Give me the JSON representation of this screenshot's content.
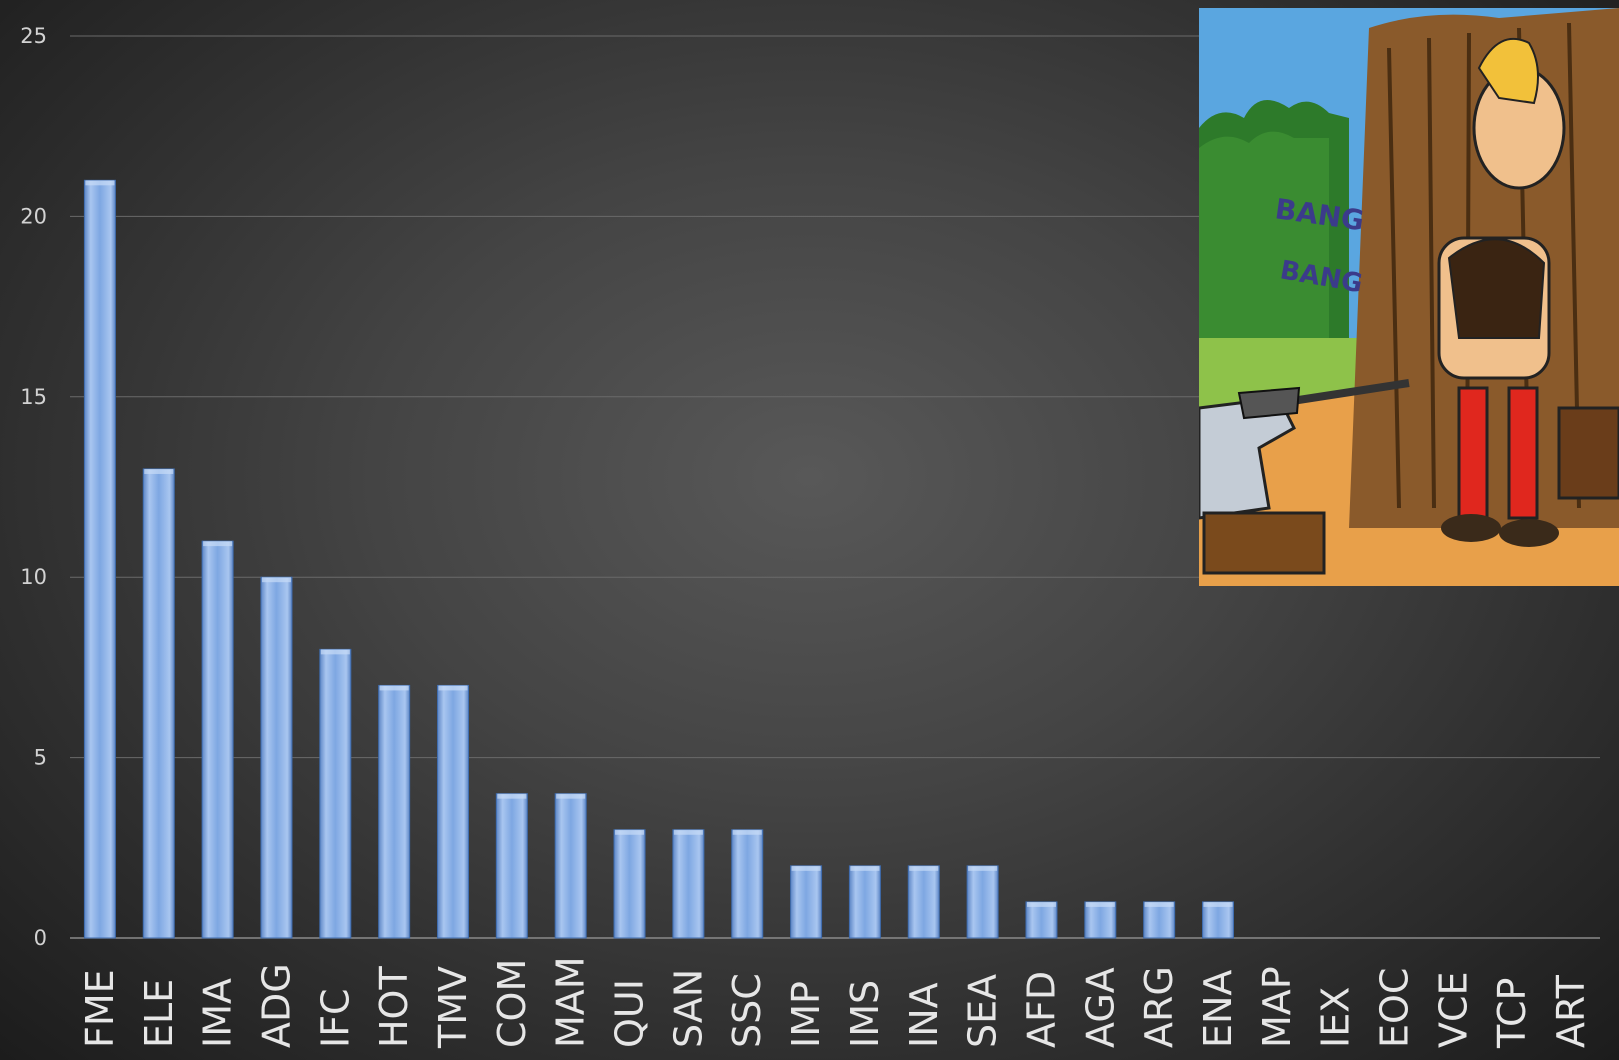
{
  "chart_data": {
    "type": "bar",
    "categories": [
      "FME",
      "ELE",
      "IMA",
      "ADG",
      "IFC",
      "HOT",
      "TMV",
      "COM",
      "MAM",
      "QUI",
      "SAN",
      "SSC",
      "IMP",
      "IMS",
      "INA",
      "SEA",
      "AFD",
      "AGA",
      "ARG",
      "ENA",
      "MAP",
      "IEX",
      "EOC",
      "VCE",
      "TCP",
      "ART"
    ],
    "values": [
      21,
      13,
      11,
      10,
      8,
      7,
      7,
      4,
      4,
      3,
      3,
      3,
      2,
      2,
      2,
      2,
      1,
      1,
      1,
      1,
      0,
      0,
      0,
      0,
      0,
      0
    ],
    "ylim": [
      0,
      25
    ],
    "yticks": [
      "0",
      "5",
      "10",
      "15",
      "20",
      "25"
    ],
    "title": "",
    "xlabel": "",
    "ylabel": "",
    "grid": true,
    "bar_color": "#6f9bdc",
    "background": "#444444"
  },
  "inset_image": {
    "description_icon": "comic-illustration",
    "lettering": "BANG BANG"
  }
}
